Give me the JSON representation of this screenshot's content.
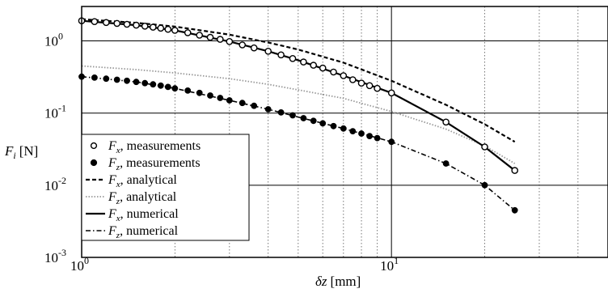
{
  "chart_data": {
    "type": "line",
    "xlabel": {
      "symbol": "δz",
      "unit": "[mm]"
    },
    "ylabel": {
      "symbol": "F",
      "subscript": "i",
      "unit": "[N]"
    },
    "xscale": "log",
    "yscale": "log",
    "xlim": [
      1,
      25
    ],
    "ylim": [
      0.001,
      3
    ],
    "grid": true,
    "legend_position": "bottom-left",
    "x_ticks": [
      {
        "value": 1,
        "base": "10",
        "exp": "0"
      },
      {
        "value": 10,
        "base": "10",
        "exp": "1"
      }
    ],
    "y_ticks": [
      {
        "value": 0.001,
        "base": "10",
        "exp": "-3"
      },
      {
        "value": 0.01,
        "base": "10",
        "exp": "-2"
      },
      {
        "value": 0.1,
        "base": "10",
        "exp": "-1"
      },
      {
        "value": 1,
        "base": "10",
        "exp": "0"
      }
    ],
    "series": [
      {
        "name": "F_x, measurements",
        "legend": {
          "symbol": "F",
          "subscript": "x",
          "text": ", measurements"
        },
        "style": "open-circle",
        "x": [
          1.0,
          1.1,
          1.2,
          1.3,
          1.4,
          1.5,
          1.6,
          1.7,
          1.8,
          1.9,
          2.0,
          2.2,
          2.4,
          2.6,
          2.8,
          3.0,
          3.3,
          3.6,
          4.0,
          4.4,
          4.8,
          5.2,
          5.6,
          6.0,
          6.5,
          7.0,
          7.5,
          8.0,
          8.5,
          9.0,
          10.0,
          15.0,
          20.0,
          25.0
        ],
        "y": [
          1.9,
          1.85,
          1.8,
          1.75,
          1.7,
          1.65,
          1.6,
          1.55,
          1.5,
          1.45,
          1.4,
          1.3,
          1.2,
          1.12,
          1.05,
          0.98,
          0.88,
          0.8,
          0.72,
          0.64,
          0.57,
          0.51,
          0.46,
          0.42,
          0.37,
          0.33,
          0.29,
          0.26,
          0.24,
          0.22,
          0.19,
          0.075,
          0.034,
          0.016
        ]
      },
      {
        "name": "F_z, measurements",
        "legend": {
          "symbol": "F",
          "subscript": "z",
          "text": ", measurements"
        },
        "style": "filled-circle",
        "x": [
          1.0,
          1.1,
          1.2,
          1.3,
          1.4,
          1.5,
          1.6,
          1.7,
          1.8,
          1.9,
          2.0,
          2.2,
          2.4,
          2.6,
          2.8,
          3.0,
          3.3,
          3.6,
          4.0,
          4.4,
          4.8,
          5.2,
          5.6,
          6.0,
          6.5,
          7.0,
          7.5,
          8.0,
          8.5,
          9.0,
          10.0,
          15.0,
          20.0,
          25.0
        ],
        "y": [
          0.32,
          0.31,
          0.3,
          0.29,
          0.28,
          0.27,
          0.26,
          0.25,
          0.24,
          0.23,
          0.22,
          0.205,
          0.19,
          0.175,
          0.162,
          0.15,
          0.138,
          0.126,
          0.113,
          0.102,
          0.093,
          0.085,
          0.078,
          0.072,
          0.066,
          0.061,
          0.056,
          0.052,
          0.048,
          0.045,
          0.04,
          0.02,
          0.01,
          0.0045
        ]
      },
      {
        "name": "F_x, analytical",
        "legend": {
          "symbol": "F",
          "subscript": "x",
          "text": ", analytical"
        },
        "style": "dashed",
        "x": [
          1,
          1.5,
          2,
          3,
          4,
          5,
          7,
          10,
          15,
          20,
          25
        ],
        "y": [
          2.0,
          1.78,
          1.58,
          1.22,
          0.95,
          0.76,
          0.5,
          0.28,
          0.13,
          0.07,
          0.04
        ]
      },
      {
        "name": "F_z, analytical",
        "legend": {
          "symbol": "F",
          "subscript": "z",
          "text": ", analytical"
        },
        "style": "dotted",
        "x": [
          1,
          1.5,
          2,
          3,
          4,
          5,
          7,
          10,
          15,
          20,
          25
        ],
        "y": [
          0.45,
          0.4,
          0.36,
          0.3,
          0.25,
          0.21,
          0.16,
          0.105,
          0.06,
          0.035,
          0.02
        ]
      },
      {
        "name": "F_x, numerical",
        "legend": {
          "symbol": "F",
          "subscript": "x",
          "text": ", numerical"
        },
        "style": "solid",
        "x": [
          1,
          1.5,
          2,
          3,
          4,
          5,
          7,
          10,
          15,
          20,
          25
        ],
        "y": [
          1.9,
          1.65,
          1.4,
          0.98,
          0.72,
          0.54,
          0.33,
          0.19,
          0.075,
          0.034,
          0.016
        ]
      },
      {
        "name": "F_z, numerical",
        "legend": {
          "symbol": "F",
          "subscript": "z",
          "text": ", numerical"
        },
        "style": "dash-dot",
        "x": [
          1,
          1.5,
          2,
          3,
          4,
          5,
          7,
          10,
          15,
          20,
          25
        ],
        "y": [
          0.32,
          0.27,
          0.22,
          0.15,
          0.113,
          0.088,
          0.061,
          0.04,
          0.02,
          0.01,
          0.0045
        ]
      }
    ]
  }
}
